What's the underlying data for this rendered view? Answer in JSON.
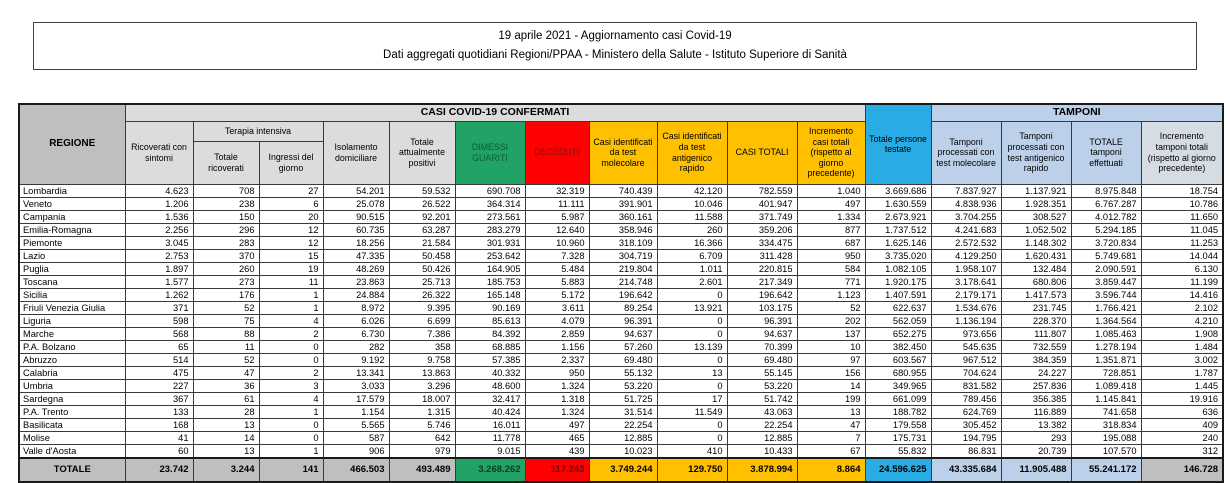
{
  "title": {
    "line1": "19 aprile 2021 - Aggiornamento casi Covid-19",
    "line2": "Dati aggregati quotidiani Regioni/PPAA - Ministero della Salute - Istituto Superiore di Sanità"
  },
  "table": {
    "region_header": "REGIONE",
    "bands": {
      "confermati": "CASI COVID-19 CONFERMATI",
      "tamponi": "TAMPONI",
      "terapia_intensiva": "Terapia intensiva"
    },
    "col_headers": {
      "ricoverati": "Ricoverati con sintomi",
      "totale_ricoverati": "Totale ricoverati",
      "ingressi": "Ingressi del giorno",
      "isolamento": "Isolamento domiciliare",
      "attualmente_positivi": "Totale attualmente positivi",
      "dimessi_guariti": "DIMESSI GUARITI",
      "deceduti": "DECEDUTI",
      "casi_molecolare": "Casi identificati da test molecolare",
      "casi_antigenico": "Casi identificati da test antigenico rapido",
      "casi_totali": "CASI TOTALI",
      "incremento_casi": "Incremento casi totali (rispetto al giorno precedente)",
      "persone_testate": "Totale persone testate",
      "tamponi_molecolare": "Tamponi processati con test molecolare",
      "tamponi_antigenico": "Tamponi processati con test antigenico rapido",
      "tamponi_totale": "TOTALE tamponi effettuati",
      "incremento_tamponi": "Incremento tamponi totali (rispetto al giorno precedente)"
    },
    "rows": [
      {
        "region": "Lombardia",
        "values": [
          "4.623",
          "708",
          "27",
          "54.201",
          "59.532",
          "690.708",
          "32.319",
          "740.439",
          "42.120",
          "782.559",
          "1.040",
          "3.669.686",
          "7.837.927",
          "1.137.921",
          "8.975.848",
          "18.754"
        ]
      },
      {
        "region": "Veneto",
        "values": [
          "1.206",
          "238",
          "6",
          "25.078",
          "26.522",
          "364.314",
          "11.111",
          "391.901",
          "10.046",
          "401.947",
          "497",
          "1.630.559",
          "4.838.936",
          "1.928.351",
          "6.767.287",
          "10.786"
        ]
      },
      {
        "region": "Campania",
        "values": [
          "1.536",
          "150",
          "20",
          "90.515",
          "92.201",
          "273.561",
          "5.987",
          "360.161",
          "11.588",
          "371.749",
          "1.334",
          "2.673.921",
          "3.704.255",
          "308.527",
          "4.012.782",
          "11.650"
        ]
      },
      {
        "region": "Emilia-Romagna",
        "values": [
          "2.256",
          "296",
          "12",
          "60.735",
          "63.287",
          "283.279",
          "12.640",
          "358.946",
          "260",
          "359.206",
          "877",
          "1.737.512",
          "4.241.683",
          "1.052.502",
          "5.294.185",
          "11.045"
        ]
      },
      {
        "region": "Piemonte",
        "values": [
          "3.045",
          "283",
          "12",
          "18.256",
          "21.584",
          "301.931",
          "10.960",
          "318.109",
          "16.366",
          "334.475",
          "687",
          "1.625.146",
          "2.572.532",
          "1.148.302",
          "3.720.834",
          "11.253"
        ]
      },
      {
        "region": "Lazio",
        "values": [
          "2.753",
          "370",
          "15",
          "47.335",
          "50.458",
          "253.642",
          "7.328",
          "304.719",
          "6.709",
          "311.428",
          "950",
          "3.735.020",
          "4.129.250",
          "1.620.431",
          "5.749.681",
          "14.044"
        ]
      },
      {
        "region": "Puglia",
        "values": [
          "1.897",
          "260",
          "19",
          "48.269",
          "50.426",
          "164.905",
          "5.484",
          "219.804",
          "1.011",
          "220.815",
          "584",
          "1.082.105",
          "1.958.107",
          "132.484",
          "2.090.591",
          "6.130"
        ]
      },
      {
        "region": "Toscana",
        "values": [
          "1.577",
          "273",
          "11",
          "23.863",
          "25.713",
          "185.753",
          "5.883",
          "214.748",
          "2.601",
          "217.349",
          "771",
          "1.920.175",
          "3.178.641",
          "680.806",
          "3.859.447",
          "11.199"
        ]
      },
      {
        "region": "Sicilia",
        "values": [
          "1.262",
          "176",
          "1",
          "24.884",
          "26.322",
          "165.148",
          "5.172",
          "196.642",
          "0",
          "196.642",
          "1.123",
          "1.407.591",
          "2.179.171",
          "1.417.573",
          "3.596.744",
          "14.416"
        ]
      },
      {
        "region": "Friuli Venezia Giulia",
        "values": [
          "371",
          "52",
          "1",
          "8.972",
          "9.395",
          "90.169",
          "3.611",
          "89.254",
          "13.921",
          "103.175",
          "52",
          "622.637",
          "1.534.676",
          "231.745",
          "1.766.421",
          "2.102"
        ]
      },
      {
        "region": "Liguria",
        "values": [
          "598",
          "75",
          "4",
          "6.026",
          "6.699",
          "85.613",
          "4.079",
          "96.391",
          "0",
          "96.391",
          "202",
          "562.059",
          "1.136.194",
          "228.370",
          "1.364.564",
          "4.210"
        ]
      },
      {
        "region": "Marche",
        "values": [
          "568",
          "88",
          "2",
          "6.730",
          "7.386",
          "84.392",
          "2.859",
          "94.637",
          "0",
          "94.637",
          "137",
          "652.275",
          "973.656",
          "111.807",
          "1.085.463",
          "1.908"
        ]
      },
      {
        "region": "P.A. Bolzano",
        "values": [
          "65",
          "11",
          "0",
          "282",
          "358",
          "68.885",
          "1.156",
          "57.260",
          "13.139",
          "70.399",
          "10",
          "382.450",
          "545.635",
          "732.559",
          "1.278.194",
          "1.484"
        ]
      },
      {
        "region": "Abruzzo",
        "values": [
          "514",
          "52",
          "0",
          "9.192",
          "9.758",
          "57.385",
          "2.337",
          "69.480",
          "0",
          "69.480",
          "97",
          "603.567",
          "967.512",
          "384.359",
          "1.351.871",
          "3.002"
        ]
      },
      {
        "region": "Calabria",
        "values": [
          "475",
          "47",
          "2",
          "13.341",
          "13.863",
          "40.332",
          "950",
          "55.132",
          "13",
          "55.145",
          "156",
          "680.955",
          "704.624",
          "24.227",
          "728.851",
          "1.787"
        ]
      },
      {
        "region": "Umbria",
        "values": [
          "227",
          "36",
          "3",
          "3.033",
          "3.296",
          "48.600",
          "1.324",
          "53.220",
          "0",
          "53.220",
          "14",
          "349.965",
          "831.582",
          "257.836",
          "1.089.418",
          "1.445"
        ]
      },
      {
        "region": "Sardegna",
        "values": [
          "367",
          "61",
          "4",
          "17.579",
          "18.007",
          "32.417",
          "1.318",
          "51.725",
          "17",
          "51.742",
          "199",
          "661.099",
          "789.456",
          "356.385",
          "1.145.841",
          "19.916"
        ]
      },
      {
        "region": "P.A. Trento",
        "values": [
          "133",
          "28",
          "1",
          "1.154",
          "1.315",
          "40.424",
          "1.324",
          "31.514",
          "11.549",
          "43.063",
          "13",
          "188.782",
          "624.769",
          "116.889",
          "741.658",
          "636"
        ]
      },
      {
        "region": "Basilicata",
        "values": [
          "168",
          "13",
          "0",
          "5.565",
          "5.746",
          "16.011",
          "497",
          "22.254",
          "0",
          "22.254",
          "47",
          "179.558",
          "305.452",
          "13.382",
          "318.834",
          "409"
        ]
      },
      {
        "region": "Molise",
        "values": [
          "41",
          "14",
          "0",
          "587",
          "642",
          "11.778",
          "465",
          "12.885",
          "0",
          "12.885",
          "7",
          "175.731",
          "194.795",
          "293",
          "195.088",
          "240"
        ]
      },
      {
        "region": "Valle d'Aosta",
        "values": [
          "60",
          "13",
          "1",
          "906",
          "979",
          "9.015",
          "439",
          "10.023",
          "410",
          "10.433",
          "67",
          "55.832",
          "86.831",
          "20.739",
          "107.570",
          "312"
        ]
      }
    ],
    "total": {
      "label": "TOTALE",
      "values": [
        "23.742",
        "3.244",
        "141",
        "466.503",
        "493.489",
        "3.268.262",
        "117.243",
        "3.749.244",
        "129.750",
        "3.878.994",
        "8.864",
        "24.596.625",
        "43.335.684",
        "11.905.488",
        "55.241.172",
        "146.728"
      ]
    },
    "colors": {
      "green": "#21A366",
      "red": "#FF0000",
      "yellow": "#FFC000",
      "cyan": "#29ABE3",
      "light_blue": "#BDD0E9",
      "gray_header": "#BFBFBF",
      "light_gray": "#DCDCDC",
      "incr_tamponi_header": "#D6DCE4",
      "total_gray": "#BFBFBF"
    }
  }
}
